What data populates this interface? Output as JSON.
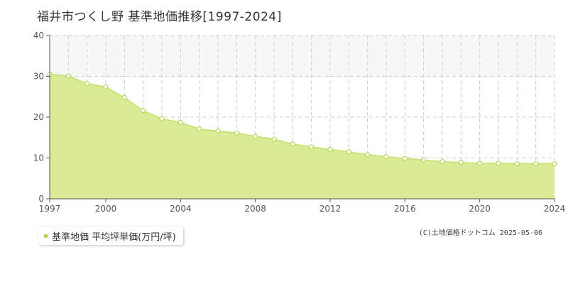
{
  "chart_data": {
    "type": "area",
    "title": "福井市つくし野 基準地価推移[1997-2024]",
    "x": [
      1997,
      1998,
      1999,
      2000,
      2001,
      2002,
      2003,
      2004,
      2005,
      2006,
      2007,
      2008,
      2009,
      2010,
      2011,
      2012,
      2013,
      2014,
      2015,
      2016,
      2017,
      2018,
      2019,
      2020,
      2021,
      2022,
      2023,
      2024
    ],
    "series": [
      {
        "name": "基準地価 平均坪単価(万円/坪)",
        "values": [
          30.5,
          30.1,
          28.2,
          27.4,
          24.8,
          21.6,
          19.6,
          18.7,
          17.1,
          16.6,
          16.1,
          15.3,
          14.6,
          13.4,
          12.7,
          12.1,
          11.5,
          10.8,
          10.3,
          9.9,
          9.5,
          9.1,
          8.9,
          8.7,
          8.7,
          8.6,
          8.6,
          8.6
        ]
      }
    ],
    "xlim": [
      1997,
      2024
    ],
    "ylim": [
      0,
      40
    ],
    "x_ticks": [
      "1997",
      "2000",
      "2004",
      "2008",
      "2012",
      "2016",
      "2020",
      "2024"
    ],
    "y_ticks": [
      "0",
      "10",
      "20",
      "30",
      "40"
    ],
    "grid": true,
    "legend_position": "bottom-left"
  },
  "legend": {
    "label": "基準地価 平均坪単価(万円/坪)"
  },
  "copyright": "(C)土地価格ドットコム 2025-05-06",
  "colors": {
    "area_fill": "#d9ec95",
    "line": "#c3e06a",
    "marker_stroke": "#b5d55a",
    "legend_swatch": "#b5d55a",
    "upper_band": "#f7f7f7",
    "grid": "#cccccc",
    "axis": "#555555"
  }
}
